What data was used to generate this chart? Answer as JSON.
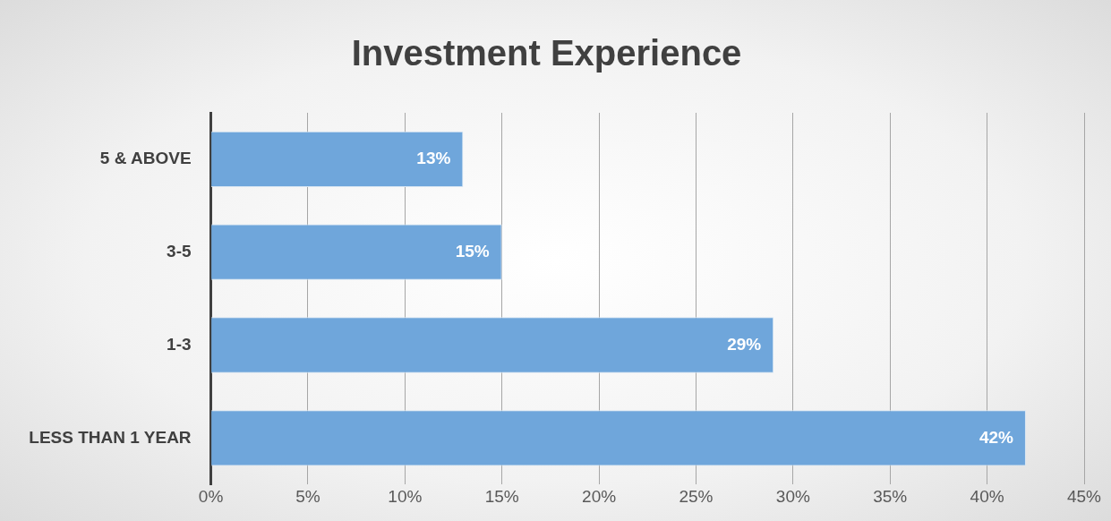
{
  "chart_data": {
    "type": "bar",
    "orientation": "horizontal",
    "title": "Investment Experience",
    "categories": [
      "5 & ABOVE",
      "3-5",
      "1-3",
      "LESS THAN 1 YEAR"
    ],
    "values": [
      13,
      15,
      29,
      42
    ],
    "color": "#6fa6db",
    "value_labels": [
      "13%",
      "15%",
      "29%",
      "42%"
    ],
    "xlim": [
      0,
      45
    ],
    "xticks": [
      {
        "value": 0,
        "label": "0%"
      },
      {
        "value": 5,
        "label": "5%"
      },
      {
        "value": 10,
        "label": "10%"
      },
      {
        "value": 15,
        "label": "15%"
      },
      {
        "value": 20,
        "label": "20%"
      },
      {
        "value": 25,
        "label": "25%"
      },
      {
        "value": 30,
        "label": "30%"
      },
      {
        "value": 35,
        "label": "35%"
      },
      {
        "value": 40,
        "label": "40%"
      },
      {
        "value": 45,
        "label": "45%"
      }
    ],
    "grid": "x",
    "legend": false
  }
}
